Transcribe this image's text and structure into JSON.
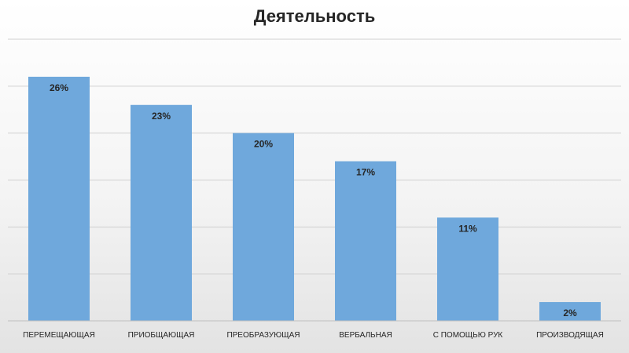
{
  "chart_data": {
    "type": "bar",
    "title": "Деятельность",
    "categories": [
      "ПЕРЕМЕЩАЮЩАЯ",
      "ПРИОБЩАЮЩАЯ",
      "ПРЕОБРАЗУЮЩАЯ",
      "ВЕРБАЛЬНАЯ",
      "С ПОМОЩЬЮ РУК",
      "ПРОИЗВОДЯЩАЯ"
    ],
    "values": [
      26,
      23,
      20,
      17,
      11,
      2
    ],
    "value_labels": [
      "26%",
      "23%",
      "20%",
      "17%",
      "11%",
      "2%"
    ],
    "ylim": [
      0,
      30
    ],
    "grid": true,
    "bar_color": "#6fa8dc"
  }
}
